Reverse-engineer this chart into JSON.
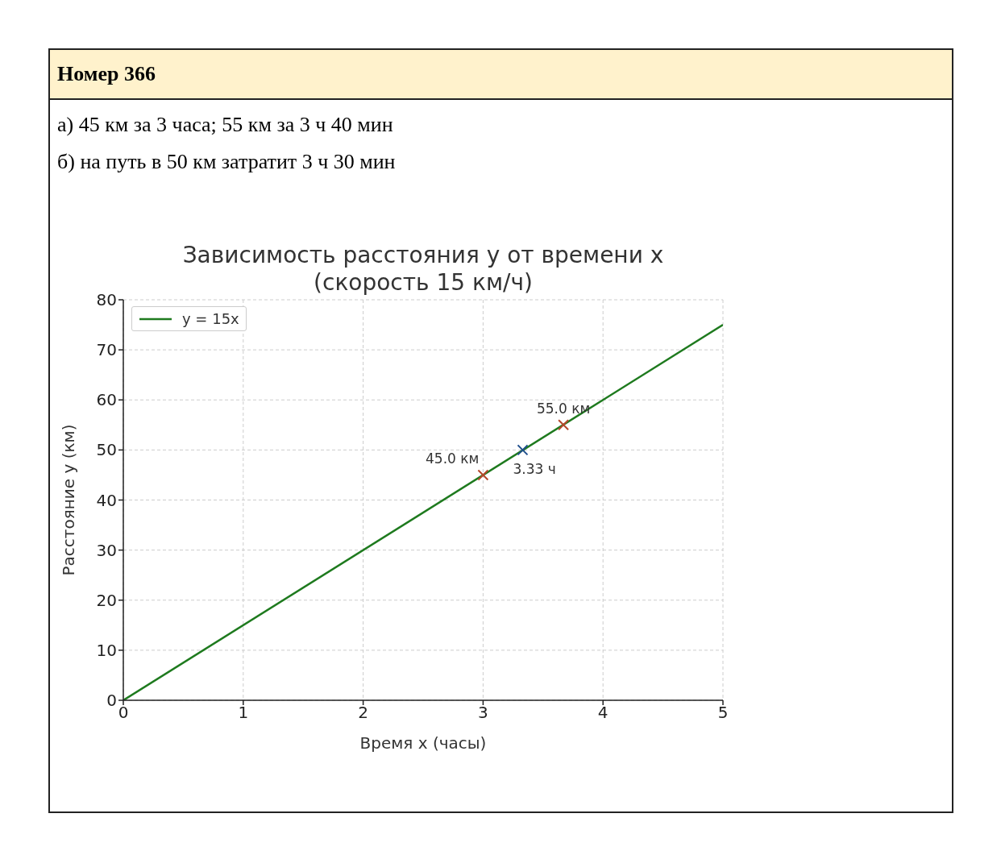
{
  "chart_data": {
    "type": "line",
    "title": "Зависимость расстояния y от времени x\n(скорость 15 км/ч)",
    "xlabel": "Время x (часы)",
    "ylabel": "Расстояние y (км)",
    "annotations": [
      "Номер 366",
      "а) 45 км за 3 часа; 55 км за 3 ч 40 мин",
      "б) на путь в 50 км затратит 3 ч 30 мин",
      {
        "text": "45.0 км",
        "x": 3,
        "y": 45
      },
      {
        "text": "55.0 км",
        "x": 3.67,
        "y": 55
      },
      {
        "text": "3.33 ч",
        "x": 3.33,
        "y": 50
      }
    ],
    "series": [
      {
        "name": "y = 15x",
        "color": "#1e7a1e",
        "x": [
          0,
          5
        ],
        "values": [
          0,
          75
        ]
      },
      {
        "type": "scatter",
        "color": "#b5472a",
        "x": [
          3,
          3.67
        ],
        "values": [
          45,
          55
        ],
        "marker": "cross"
      },
      {
        "type": "scatter",
        "color": "#1f4e8c",
        "x": [
          3.33
        ],
        "values": [
          50
        ],
        "marker": "cross"
      }
    ],
    "xlim": [
      0,
      5
    ],
    "xticks": [
      0,
      1,
      2,
      3,
      4,
      5
    ],
    "ylim": [
      0,
      80
    ],
    "yticks": [
      0,
      10,
      20,
      30,
      40,
      50,
      60,
      70,
      80
    ],
    "grid": true,
    "legend": "top left"
  }
}
